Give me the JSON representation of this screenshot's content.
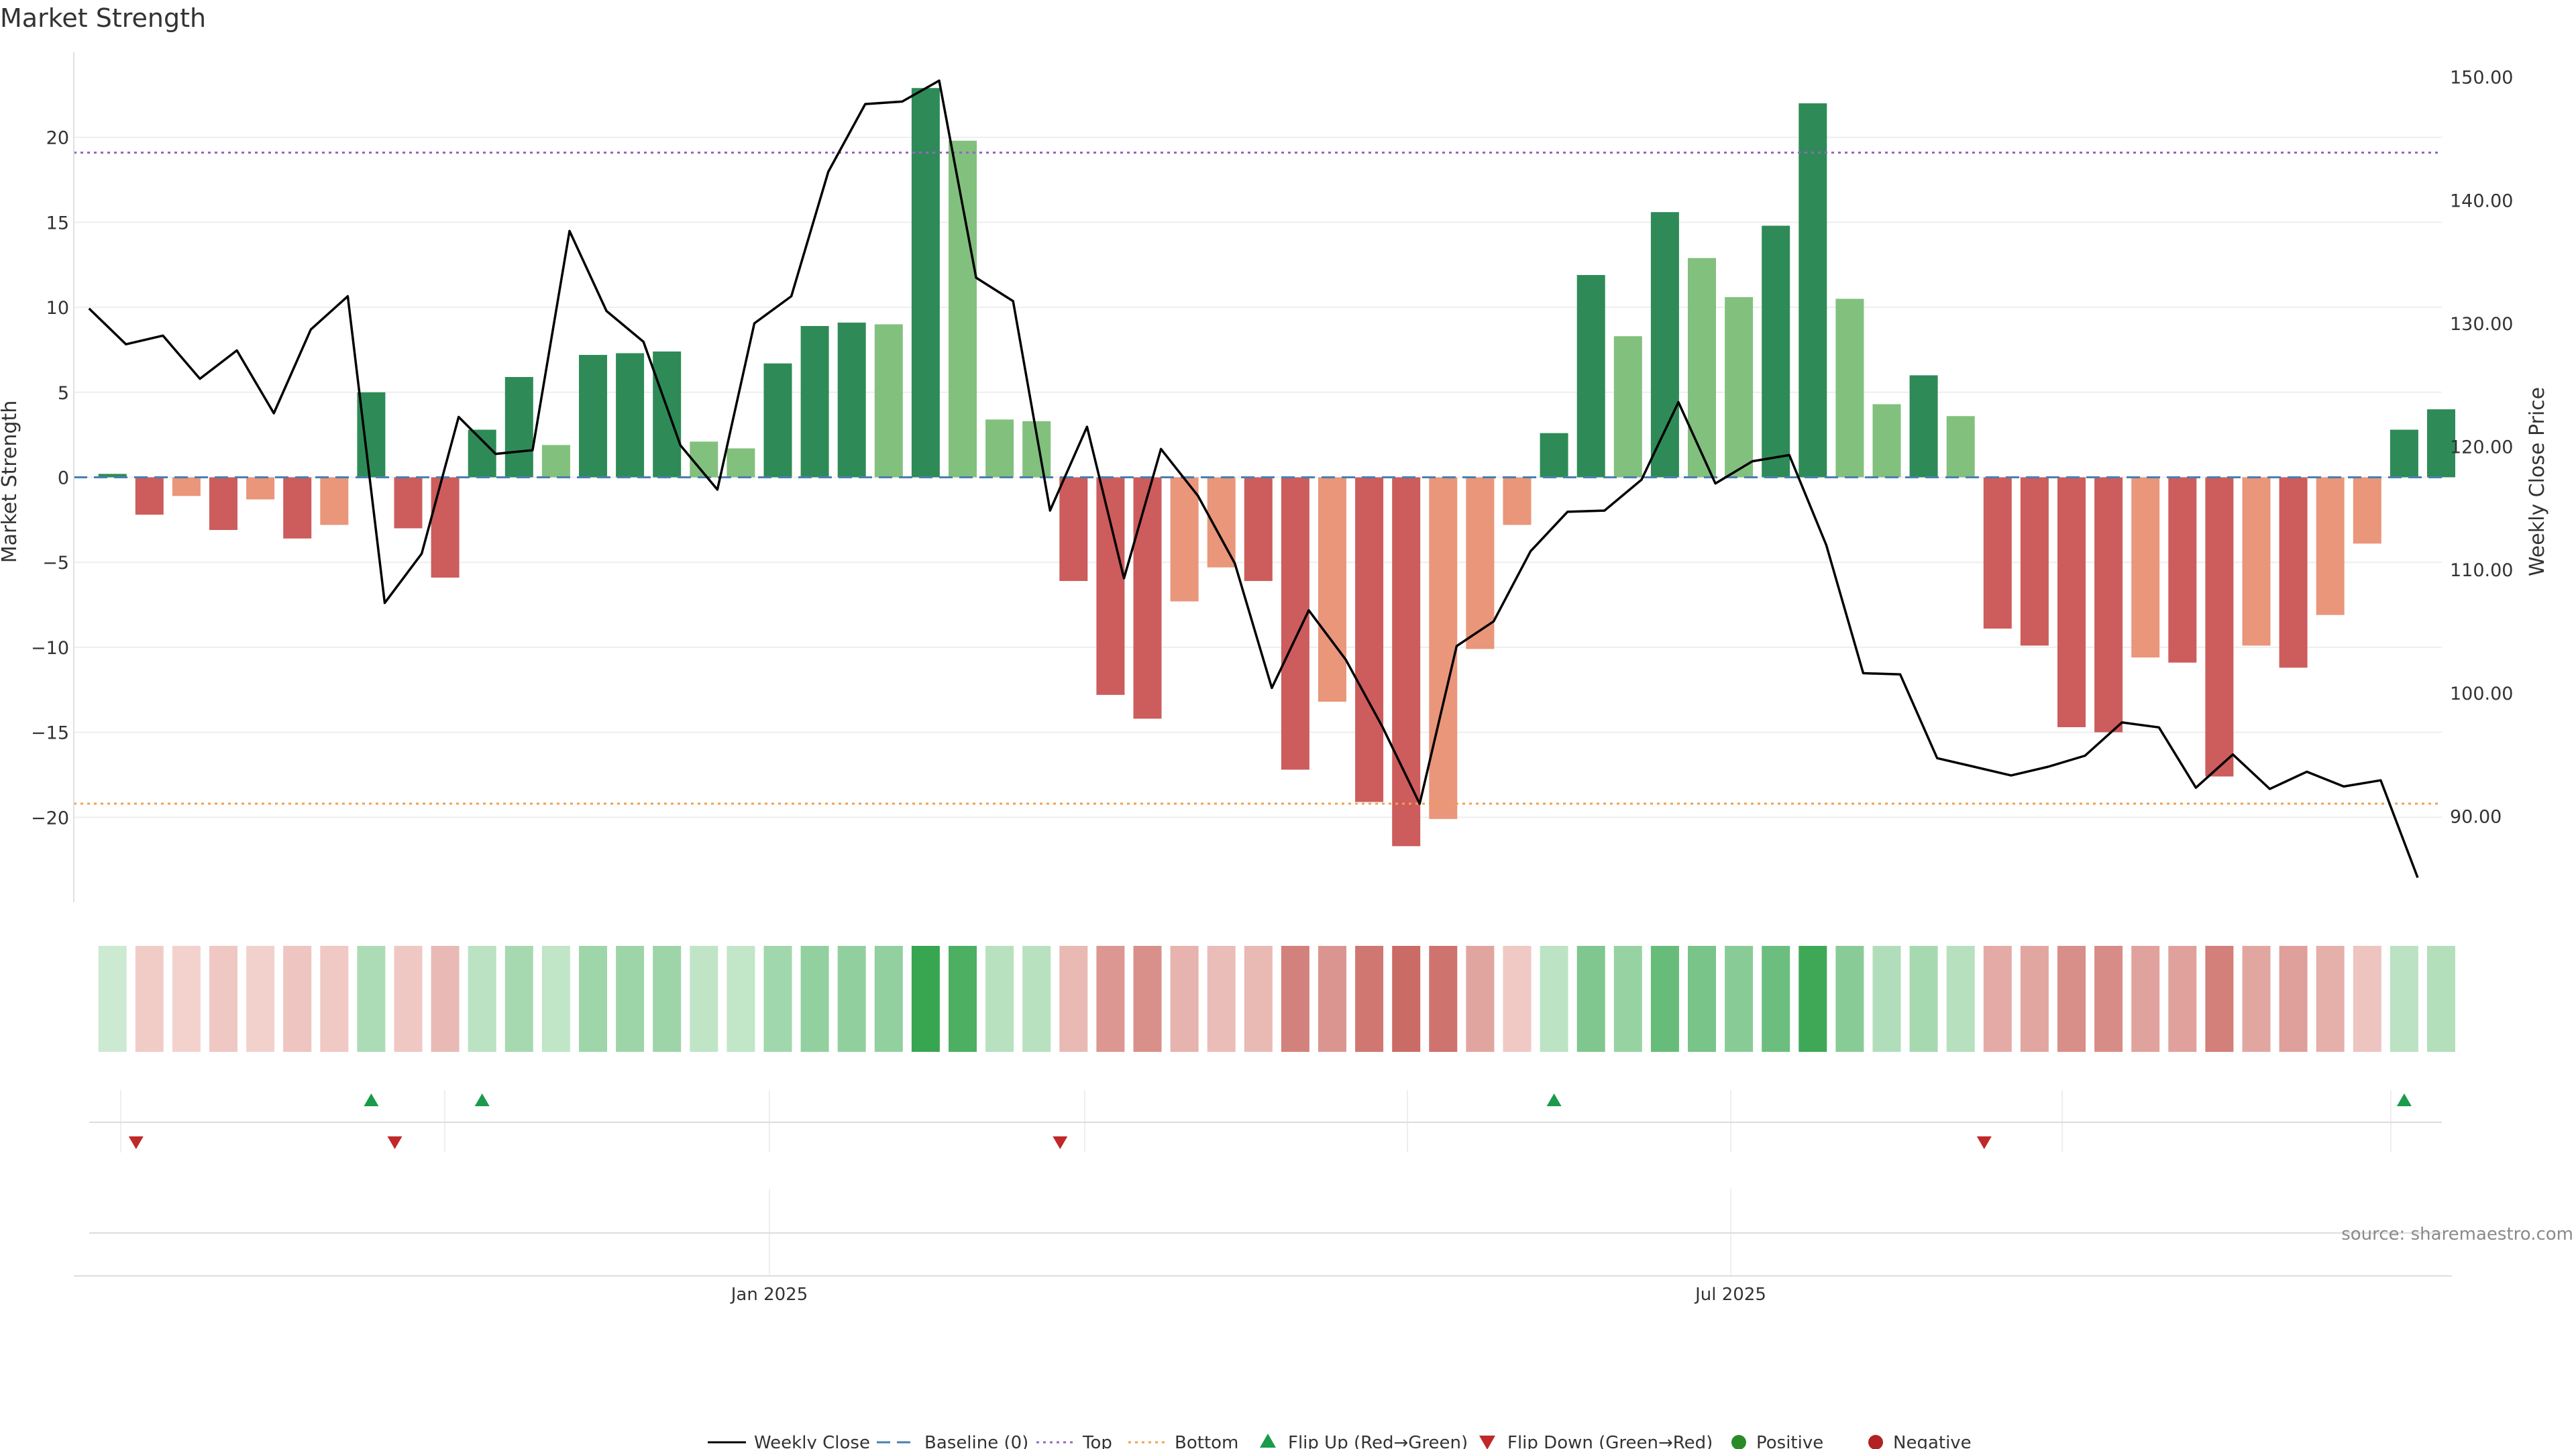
{
  "chart_data": {
    "type": "bar",
    "title": "Market Strength",
    "ylabel": "Market Strength",
    "y2label": "Weekly Close Price",
    "ylim": [
      -25,
      25
    ],
    "y2lim": [
      83,
      152
    ],
    "yticks": [
      -20,
      -15,
      -10,
      -5,
      0,
      5,
      10,
      15,
      20
    ],
    "yticks_labels": [
      "−20",
      "−15",
      "−10",
      "−5",
      "0",
      "5",
      "10",
      "15",
      "20"
    ],
    "y2ticks": [
      90,
      100,
      110,
      120,
      130,
      140,
      150
    ],
    "y2ticks_labels": [
      "90.00",
      "100.00",
      "110.00",
      "120.00",
      "130.00",
      "140.00",
      "150.00"
    ],
    "xtick_labels": [
      "Jan 2025",
      "Jul 2025"
    ],
    "top_threshold": 19.1,
    "bottom_threshold": -19.2,
    "strength": [
      0.2,
      -2.2,
      -1.1,
      -3.1,
      -1.3,
      -3.6,
      -2.8,
      5.0,
      -3.0,
      -5.9,
      2.8,
      5.9,
      1.9,
      7.2,
      7.3,
      7.4,
      2.1,
      1.7,
      6.7,
      8.9,
      9.1,
      9.0,
      22.9,
      19.8,
      3.4,
      3.3,
      -6.1,
      -12.8,
      -14.2,
      -7.3,
      -5.3,
      -6.1,
      -17.2,
      -13.2,
      -19.1,
      -21.7,
      -20.1,
      -10.1,
      -2.8,
      2.6,
      11.9,
      8.3,
      15.6,
      12.9,
      10.6,
      14.8,
      22.0,
      10.5,
      4.3,
      6.0,
      3.6,
      -8.9,
      -9.9,
      -14.7,
      -15.0,
      -10.6,
      -10.9,
      -17.6,
      -9.9,
      -11.2,
      -8.1,
      -3.9,
      2.8,
      4.0
    ],
    "close": [
      131.2,
      128.3,
      129.0,
      125.5,
      127.8,
      122.7,
      129.5,
      132.2,
      107.3,
      111.3,
      122.4,
      119.4,
      119.7,
      137.5,
      131.0,
      128.5,
      120.1,
      116.5,
      130.0,
      132.2,
      142.3,
      147.8,
      148.0,
      149.7,
      133.7,
      131.8,
      114.8,
      121.6,
      109.3,
      119.8,
      116.0,
      110.5,
      100.4,
      106.7,
      102.7,
      97.2,
      91.0,
      103.8,
      105.8,
      111.5,
      114.7,
      114.8,
      117.3,
      123.6,
      117.0,
      118.8,
      119.3,
      112.0,
      101.6,
      101.5,
      94.7,
      94.0,
      93.3,
      94.0,
      94.9,
      97.6,
      97.2,
      92.3,
      95.0,
      92.2,
      93.6,
      92.4,
      92.9,
      85.0
    ],
    "flip_up_indices": [
      7,
      10,
      39,
      62
    ],
    "flip_down_indices": [
      1,
      8,
      26,
      51
    ],
    "legend": {
      "weekly_close": "Weekly Close",
      "baseline": "Baseline (0)",
      "top": "Top",
      "bottom": "Bottom",
      "flip_up": "Flip Up (Red→Green)",
      "flip_down": "Flip Down (Green→Red)",
      "positive": "Positive",
      "negative": "Negative"
    },
    "legend_placement": "bottom-center",
    "grid": true,
    "colors": {
      "pos_dark": "#2e8b57",
      "pos_light": "#82c07e",
      "neg_dark": "#cd5c5c",
      "neg_light": "#e9967a",
      "line": "#000000",
      "baseline": "#4a7fb0",
      "top": "#9467bd",
      "bottom": "#f0a050",
      "flip_up": "#1a9a4a",
      "flip_down": "#c0282a",
      "positive_dot": "#2a8a2a",
      "negative_dot": "#b22222"
    }
  },
  "source": "source: sharemaestro.com"
}
